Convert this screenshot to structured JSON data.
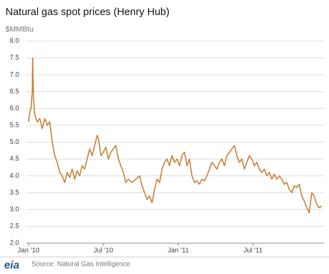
{
  "chart_data": {
    "type": "line",
    "title": "Natural gas spot prices (Henry Hub)",
    "y_label": "$MMBtu",
    "source": "Source: Natural Gas Intelligence",
    "logo": "eia",
    "xlim": [
      -0.2,
      23.7
    ],
    "xticks": [
      {
        "value": 0,
        "label": "Jan '10"
      },
      {
        "value": 6,
        "label": "Jul '10"
      },
      {
        "value": 12,
        "label": "Jan '11"
      },
      {
        "value": 18,
        "label": "Jul '11"
      }
    ],
    "ylim": [
      2,
      8
    ],
    "yticks": [
      {
        "value": 2,
        "label": "2.0"
      },
      {
        "value": 2.5,
        "label": "2.5"
      },
      {
        "value": 3,
        "label": "3.0"
      },
      {
        "value": 3.5,
        "label": "3.5"
      },
      {
        "value": 4,
        "label": "4.0"
      },
      {
        "value": 4.5,
        "label": "4.5"
      },
      {
        "value": 5,
        "label": "5.0"
      },
      {
        "value": 5.5,
        "label": "5.5"
      },
      {
        "value": 6,
        "label": "6.0"
      },
      {
        "value": 6.5,
        "label": "6.5"
      },
      {
        "value": 7,
        "label": "7.0"
      },
      {
        "value": 7.5,
        "label": "7.5"
      },
      {
        "value": 8,
        "label": "8.0"
      }
    ],
    "grid": true,
    "x": [
      0,
      0.1,
      0.2,
      0.3,
      0.33,
      0.4,
      0.5,
      0.7,
      0.9,
      1.1,
      1.3,
      1.5,
      1.7,
      1.9,
      2.1,
      2.3,
      2.5,
      2.7,
      2.9,
      3.1,
      3.3,
      3.5,
      3.7,
      3.9,
      4.1,
      4.3,
      4.5,
      4.7,
      4.9,
      5.1,
      5.3,
      5.5,
      5.6,
      5.8,
      6.0,
      6.2,
      6.4,
      6.6,
      6.8,
      7.0,
      7.2,
      7.4,
      7.6,
      7.8,
      8.0,
      8.3,
      8.6,
      8.9,
      9.1,
      9.3,
      9.5,
      9.7,
      9.9,
      10.1,
      10.3,
      10.5,
      10.7,
      10.9,
      11.1,
      11.3,
      11.5,
      11.7,
      11.9,
      12.1,
      12.3,
      12.5,
      12.7,
      12.9,
      13.1,
      13.3,
      13.5,
      13.7,
      13.9,
      14.1,
      14.3,
      14.5,
      14.7,
      14.9,
      15.1,
      15.3,
      15.5,
      15.7,
      15.9,
      16.1,
      16.3,
      16.5,
      16.7,
      16.9,
      17.1,
      17.3,
      17.5,
      17.7,
      17.9,
      18.1,
      18.3,
      18.5,
      18.7,
      18.9,
      19.1,
      19.3,
      19.5,
      19.7,
      19.9,
      20.1,
      20.3,
      20.5,
      20.7,
      20.9,
      21.1,
      21.3,
      21.5,
      21.7,
      21.9,
      22.1,
      22.3,
      22.5,
      22.7,
      22.9,
      23.1,
      23.3,
      23.5
    ],
    "series": [
      {
        "name": "Henry Hub",
        "color": "#c47f34",
        "values": [
          5.6,
          5.9,
          6.0,
          6.5,
          7.5,
          6.3,
          5.8,
          5.6,
          5.7,
          5.4,
          5.7,
          5.5,
          5.6,
          5.0,
          4.6,
          4.4,
          4.1,
          4.0,
          3.8,
          4.1,
          3.95,
          4.2,
          3.9,
          4.15,
          4.0,
          4.3,
          4.2,
          4.5,
          4.8,
          4.6,
          4.9,
          5.2,
          5.1,
          4.6,
          4.7,
          4.85,
          4.5,
          4.7,
          4.8,
          4.9,
          4.5,
          4.3,
          4.1,
          3.8,
          3.9,
          3.8,
          3.9,
          4.0,
          3.7,
          3.5,
          3.3,
          3.4,
          3.2,
          3.6,
          3.9,
          3.8,
          4.2,
          4.4,
          4.5,
          4.3,
          4.6,
          4.4,
          4.5,
          4.3,
          4.6,
          4.7,
          4.3,
          4.5,
          4.0,
          3.8,
          3.85,
          3.75,
          3.9,
          3.85,
          4.0,
          4.2,
          4.4,
          4.3,
          4.2,
          4.4,
          4.5,
          4.3,
          4.6,
          4.7,
          4.8,
          4.9,
          4.6,
          4.4,
          4.5,
          4.2,
          4.4,
          4.6,
          4.5,
          4.3,
          4.4,
          4.2,
          4.1,
          4.2,
          4.0,
          4.1,
          3.9,
          4.05,
          3.9,
          4.0,
          3.9,
          3.75,
          3.8,
          3.6,
          3.5,
          3.7,
          3.65,
          3.75,
          3.4,
          3.25,
          3.05,
          2.9,
          3.5,
          3.4,
          3.15,
          3.05,
          3.1
        ]
      }
    ]
  }
}
